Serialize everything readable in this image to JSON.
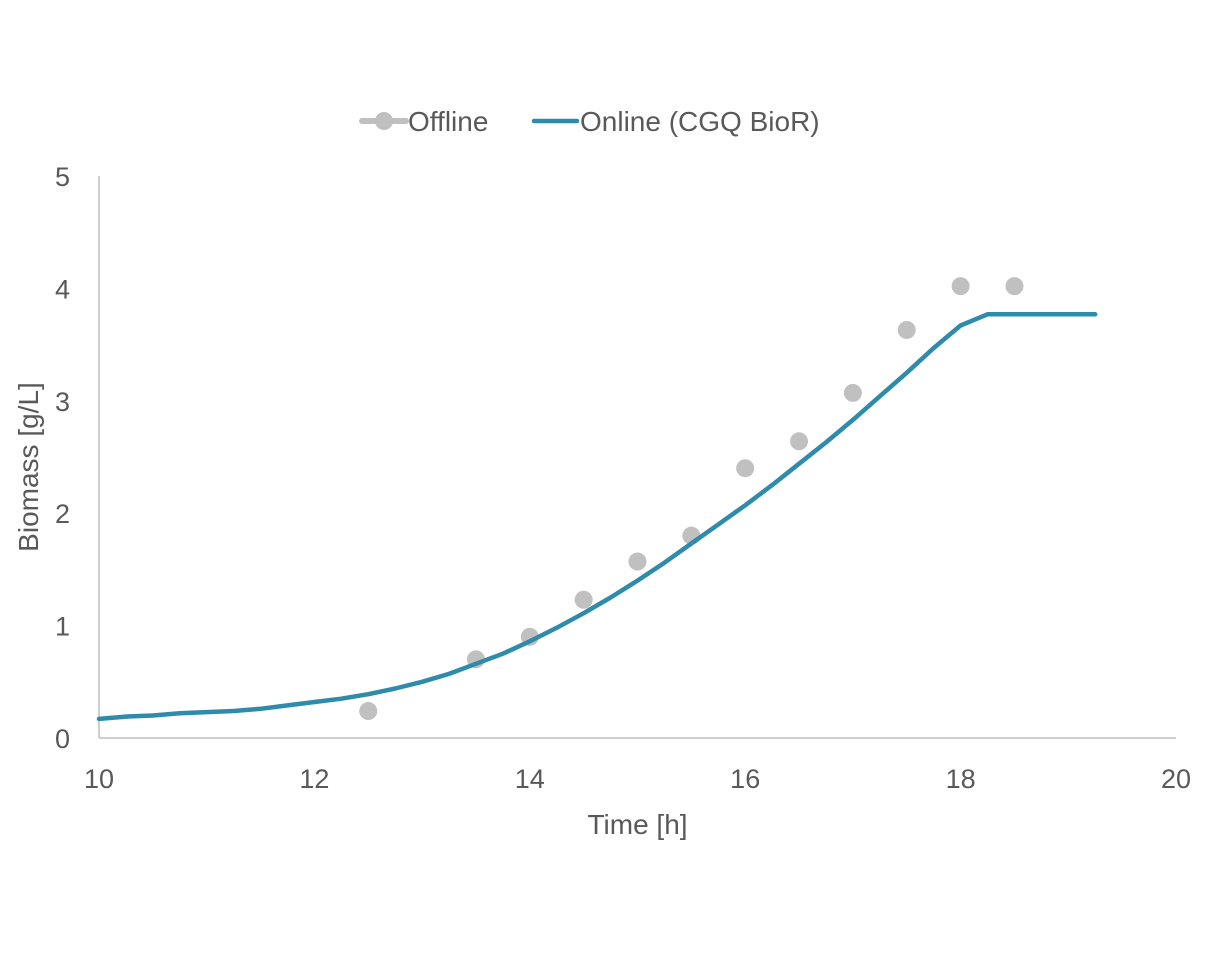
{
  "colors": {
    "offline": "#c0c0c0",
    "online": "#2e8bab",
    "axis": "#bfbfbf",
    "text": "#595959"
  },
  "chart_data": {
    "type": "scatter",
    "title": "",
    "xlabel": "Time [h]",
    "ylabel": "Biomass [g/L]",
    "xlim": [
      10,
      20
    ],
    "ylim": [
      0,
      5
    ],
    "xticks": [
      10,
      12,
      14,
      16,
      18,
      20
    ],
    "yticks": [
      0,
      1,
      2,
      3,
      4,
      5
    ],
    "grid": false,
    "legend_position": "top-center",
    "series": [
      {
        "name": "Offline",
        "style": "markers",
        "x": [
          12.5,
          13.5,
          14.0,
          14.5,
          15.0,
          15.5,
          16.0,
          16.5,
          17.0,
          17.5,
          18.0,
          18.5
        ],
        "y": [
          0.24,
          0.7,
          0.9,
          1.23,
          1.57,
          1.8,
          2.4,
          2.64,
          3.07,
          3.63,
          4.02,
          4.02
        ]
      },
      {
        "name": "Online (CGQ BioR)",
        "style": "line",
        "x": [
          10.0,
          10.25,
          10.5,
          10.75,
          11.0,
          11.25,
          11.5,
          11.75,
          12.0,
          12.25,
          12.5,
          12.75,
          13.0,
          13.25,
          13.5,
          13.75,
          14.0,
          14.25,
          14.5,
          14.75,
          15.0,
          15.25,
          15.5,
          15.75,
          16.0,
          16.25,
          16.5,
          16.75,
          17.0,
          17.25,
          17.5,
          17.75,
          18.0,
          18.25,
          18.5,
          18.75,
          19.0,
          19.25
        ],
        "y": [
          0.17,
          0.19,
          0.2,
          0.22,
          0.23,
          0.24,
          0.26,
          0.29,
          0.32,
          0.35,
          0.39,
          0.44,
          0.5,
          0.57,
          0.66,
          0.75,
          0.86,
          0.98,
          1.11,
          1.25,
          1.4,
          1.56,
          1.73,
          1.9,
          2.07,
          2.25,
          2.44,
          2.63,
          2.83,
          3.04,
          3.25,
          3.47,
          3.67,
          3.77,
          3.77,
          3.77,
          3.77,
          3.77
        ]
      }
    ]
  }
}
